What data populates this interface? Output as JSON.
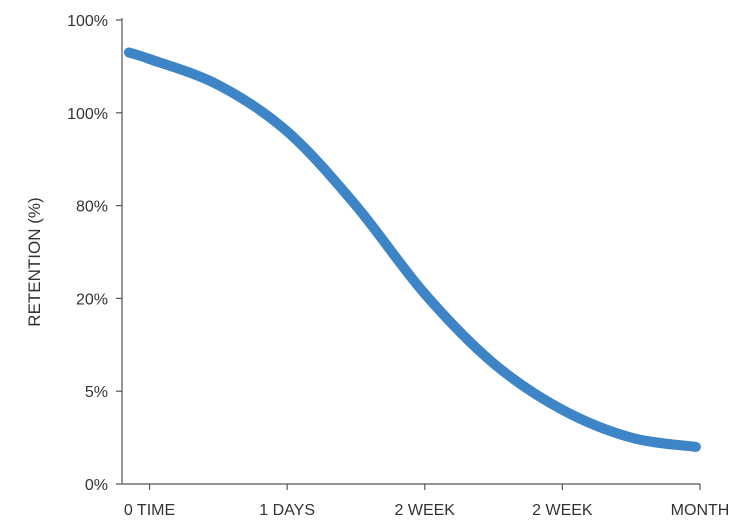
{
  "chart_data": {
    "type": "line",
    "title": "",
    "xlabel": "",
    "ylabel": "RETENTION (%)",
    "x_tick_labels": [
      "0 TIME",
      "1 DAYS",
      "2 WEEK",
      "2 WEEK",
      "MONTH"
    ],
    "y_tick_labels": [
      "0%",
      "5%",
      "20%",
      "80%",
      "100%",
      "100%"
    ],
    "xlim": [
      -0.2,
      4
    ],
    "ylim": [
      0,
      5
    ],
    "grid": false,
    "legend": "none",
    "series": [
      {
        "color": "#3d85c6",
        "points": [
          {
            "x": -0.15,
            "y": 4.65
          },
          {
            "x": 0.0,
            "y": 4.58
          },
          {
            "x": 0.5,
            "y": 4.3
          },
          {
            "x": 1.0,
            "y": 3.8
          },
          {
            "x": 1.5,
            "y": 3.0
          },
          {
            "x": 2.0,
            "y": 2.05
          },
          {
            "x": 2.5,
            "y": 1.3
          },
          {
            "x": 3.0,
            "y": 0.8
          },
          {
            "x": 3.5,
            "y": 0.5
          },
          {
            "x": 3.97,
            "y": 0.4
          }
        ]
      }
    ],
    "axis_color": "#555555"
  }
}
